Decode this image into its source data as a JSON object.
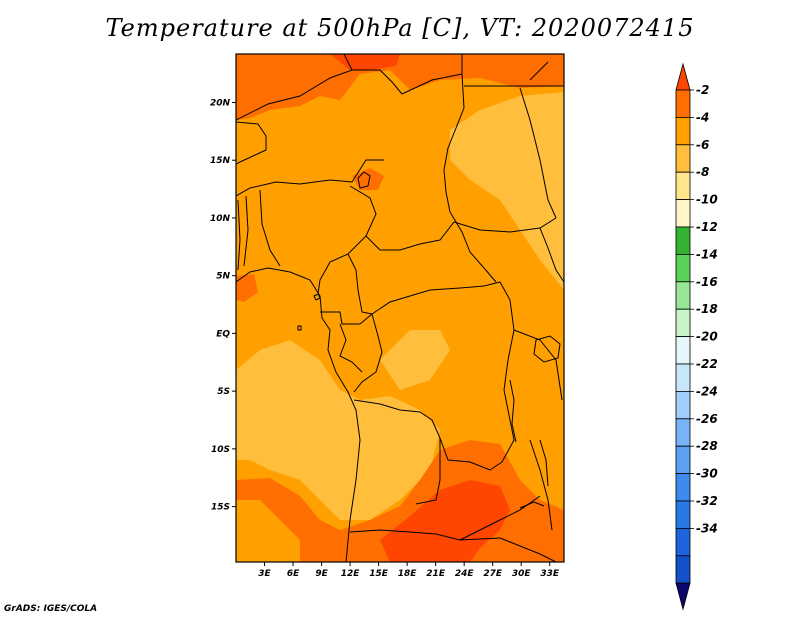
{
  "title": "Temperature at 500hPa [C], VT: 2020072415",
  "credit": "GrADS: IGES/COLA",
  "map": {
    "variable": "Temperature at 500hPa",
    "units": "C",
    "valid_time": "2020072415",
    "lon_range": [
      0,
      34.5
    ],
    "lat_range": [
      -19.8,
      24.2
    ],
    "lon_ticks": [
      {
        "value": 3,
        "label": "3E"
      },
      {
        "value": 6,
        "label": "6E"
      },
      {
        "value": 9,
        "label": "9E"
      },
      {
        "value": 12,
        "label": "12E"
      },
      {
        "value": 15,
        "label": "15E"
      },
      {
        "value": 18,
        "label": "18E"
      },
      {
        "value": 21,
        "label": "21E"
      },
      {
        "value": 24,
        "label": "24E"
      },
      {
        "value": 27,
        "label": "27E"
      },
      {
        "value": 30,
        "label": "30E"
      },
      {
        "value": 33,
        "label": "33E"
      }
    ],
    "lat_ticks": [
      {
        "value": 20,
        "label": "20N"
      },
      {
        "value": 15,
        "label": "15N"
      },
      {
        "value": 10,
        "label": "10N"
      },
      {
        "value": 5,
        "label": "5N"
      },
      {
        "value": 0,
        "label": "EQ"
      },
      {
        "value": -5,
        "label": "5S"
      },
      {
        "value": -10,
        "label": "10S"
      },
      {
        "value": -15,
        "label": "15S"
      }
    ]
  },
  "colorbar": {
    "colors": [
      "#0a0a6e",
      "#1450c8",
      "#1e64dc",
      "#2878e6",
      "#3c8cf0",
      "#5aa0f5",
      "#78b4f5",
      "#a0cdfa",
      "#c8e6fa",
      "#e6f5fa",
      "#c8f5c8",
      "#96e696",
      "#5ad25a",
      "#32b432",
      "#fff5c8",
      "#ffe68c",
      "#ffbe3c",
      "#ffa000",
      "#ff6e00",
      "#ff4600"
    ],
    "labels": [
      "-34",
      "-32",
      "-30",
      "-28",
      "-26",
      "-24",
      "-22",
      "-20",
      "-18",
      "-16",
      "-14",
      "-12",
      "-10",
      "-8",
      "-6",
      "-4",
      "-2"
    ]
  }
}
